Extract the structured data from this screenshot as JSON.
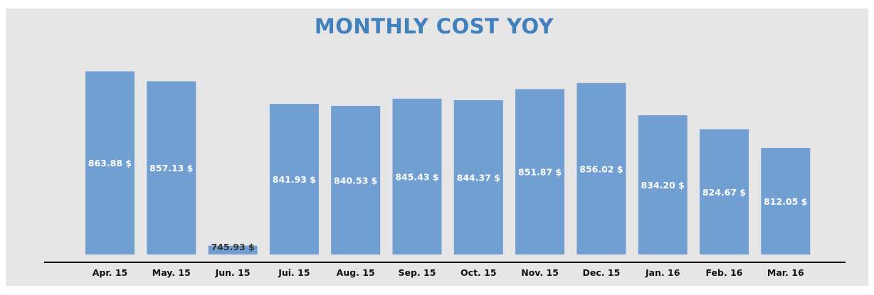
{
  "chart_data": {
    "type": "bar",
    "title": "MONTHLY COST YOY",
    "categories": [
      "Apr. 15",
      "May. 15",
      "Jun. 15",
      "Jui. 15",
      "Aug. 15",
      "Sep. 15",
      "Oct. 15",
      "Nov. 15",
      "Dec. 15",
      "Jan. 16",
      "Feb. 16",
      "Mar. 16"
    ],
    "values": [
      863.88,
      857.13,
      745.93,
      841.93,
      840.53,
      845.43,
      844.37,
      851.87,
      856.02,
      834.2,
      824.67,
      812.05
    ],
    "data_labels": [
      "863.88 $",
      "857.13 $",
      "745.93 $",
      "841.93 $",
      "840.53 $",
      "845.43 $",
      "844.37 $",
      "851.87 $",
      "856.02 $",
      "834.20 $",
      "824.67 $",
      "812.05 $"
    ],
    "xlabel": "",
    "ylabel": "",
    "ylim": [
      740,
      866
    ],
    "grid": false,
    "legend": "none",
    "colors": {
      "bar": "#719fd1",
      "title": "#3f80bd",
      "background": "#e6e6e6",
      "label": "#ffffff",
      "axis": "#111111"
    }
  }
}
